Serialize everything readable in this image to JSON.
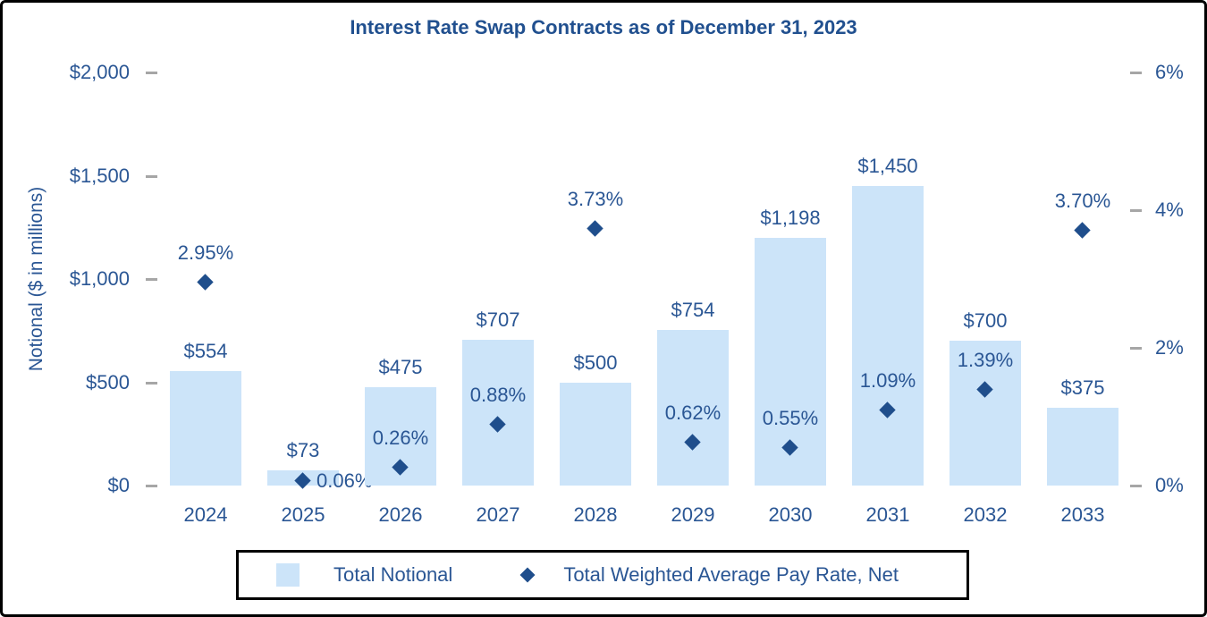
{
  "chart_data": {
    "type": "combo-bar-scatter",
    "title": "Interest Rate Swap Contracts as of December 31, 2023",
    "categories": [
      "2024",
      "2025",
      "2026",
      "2027",
      "2028",
      "2029",
      "2030",
      "2031",
      "2032",
      "2033"
    ],
    "series": [
      {
        "name": "Total Notional",
        "type": "bar",
        "axis": "left",
        "color": "#CCE4F9",
        "values": [
          554,
          73,
          475,
          707,
          500,
          754,
          1198,
          1450,
          700,
          375
        ],
        "labels": [
          "$554",
          "$73",
          "$475",
          "$707",
          "$500",
          "$754",
          "$1,198",
          "$1,450",
          "$700",
          "$375"
        ]
      },
      {
        "name": "Total Weighted Average Pay Rate, Net",
        "type": "scatter",
        "marker": "diamond",
        "axis": "right",
        "color": "#1F4E8C",
        "values": [
          2.95,
          0.06,
          0.26,
          0.88,
          3.73,
          0.62,
          0.55,
          1.09,
          1.39,
          3.7
        ],
        "labels": [
          "2.95%",
          "0.06%",
          "0.26%",
          "0.88%",
          "3.73%",
          "0.62%",
          "0.55%",
          "1.09%",
          "1.39%",
          "3.70%"
        ],
        "label_positions": [
          "above",
          "right",
          "above",
          "above",
          "above",
          "above",
          "above",
          "above",
          "above",
          "above"
        ]
      }
    ],
    "left_axis": {
      "title": "Notional ($ in millions)",
      "min": 0,
      "max": 2000,
      "ticks": [
        {
          "label": "$2,000",
          "value": 2000
        },
        {
          "label": "$1,500",
          "value": 1500
        },
        {
          "label": "$1,000",
          "value": 1000
        },
        {
          "label": "$500",
          "value": 500
        },
        {
          "label": "$0",
          "value": 0
        }
      ]
    },
    "right_axis": {
      "min": 0,
      "max": 6,
      "ticks": [
        {
          "label": "6%",
          "value": 6
        },
        {
          "label": "4%",
          "value": 4
        },
        {
          "label": "2%",
          "value": 2
        },
        {
          "label": "0%",
          "value": 0
        }
      ]
    },
    "grid": false,
    "legend_position": "bottom"
  },
  "colors": {
    "text_blue": "#2A5694",
    "title_blue": "#21508F",
    "bar_fill": "#CCE4F9",
    "marker_fill": "#1F4E8C",
    "tick_gray": "#A6A6A6",
    "border_black": "#000000"
  }
}
